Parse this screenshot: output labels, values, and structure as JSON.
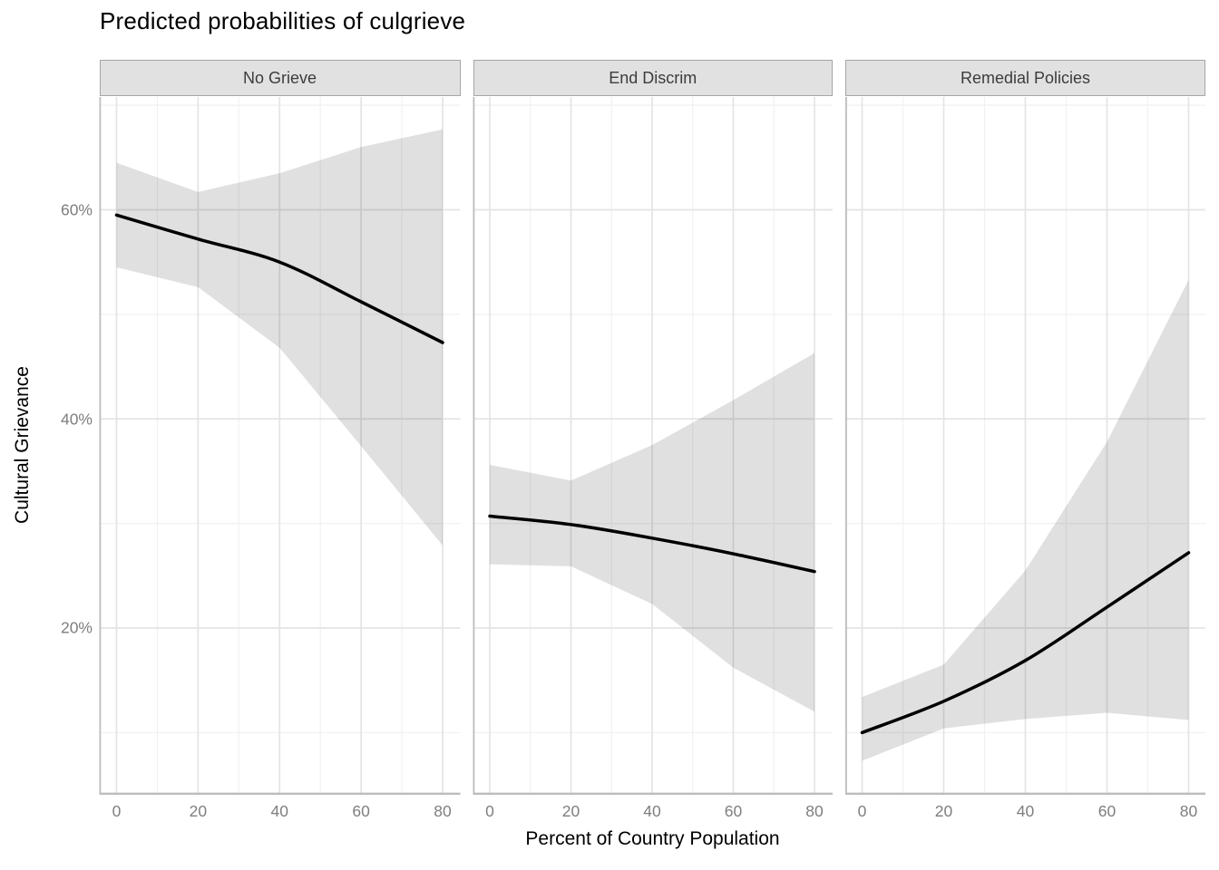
{
  "title": "Predicted probabilities of culgrieve",
  "axes": {
    "x_title": "Percent of Country Population",
    "y_title": "Cultural Grievance",
    "x_tick_labels": [
      "0",
      "20",
      "40",
      "60",
      "80"
    ],
    "y_tick_labels": [
      "20%",
      "40%",
      "60%"
    ],
    "y_tick_values": [
      20,
      40,
      60
    ]
  },
  "colors": {
    "fit_line": "#000000",
    "ribbon": "rgba(0,0,0,0.12)",
    "grid_major": "#e4e4e4",
    "grid_minor": "#f1f1f1",
    "axis_line": "#bdbdbd",
    "strip_fill": "#e1e1e1",
    "strip_border": "#a6a6a6",
    "strip_text": "#3c3c3c",
    "tick_label": "#7e7e7e",
    "title_text": "#000000"
  },
  "chart_data": {
    "type": "line",
    "title": "Predicted probabilities of culgrieve",
    "xlabel": "Percent of Country Population",
    "ylabel": "Cultural Grievance",
    "x": [
      0,
      20,
      40,
      60,
      80
    ],
    "xlim": [
      0,
      80
    ],
    "ylim": [
      4,
      71
    ],
    "y_unit": "percent",
    "grid": "major and minor gridlines, light gray on white",
    "legend_position": "none",
    "x_minor_gridlines": [
      10,
      30,
      50,
      70
    ],
    "y_major_gridlines": [
      20,
      40,
      60
    ],
    "y_minor_gridlines": [
      10,
      30,
      50,
      70
    ],
    "facets": [
      {
        "label": "No Grieve",
        "fit": [
          59.5,
          57.2,
          55.0,
          51.2,
          47.3
        ],
        "ci_lower": [
          54.5,
          52.6,
          46.8,
          37.4,
          27.9
        ],
        "ci_upper": [
          64.5,
          61.7,
          63.5,
          66.0,
          67.7
        ]
      },
      {
        "label": "End Discrim",
        "fit": [
          30.7,
          29.9,
          28.6,
          27.1,
          25.4
        ],
        "ci_lower": [
          26.1,
          25.9,
          22.3,
          16.2,
          12.0
        ],
        "ci_upper": [
          35.6,
          34.1,
          37.5,
          41.8,
          46.3
        ]
      },
      {
        "label": "Remedial Policies",
        "fit": [
          10.0,
          13.0,
          16.9,
          22.0,
          27.2
        ],
        "ci_lower": [
          7.3,
          10.4,
          11.3,
          11.9,
          11.2
        ],
        "ci_upper": [
          13.4,
          16.5,
          25.5,
          37.8,
          53.3
        ]
      }
    ]
  }
}
